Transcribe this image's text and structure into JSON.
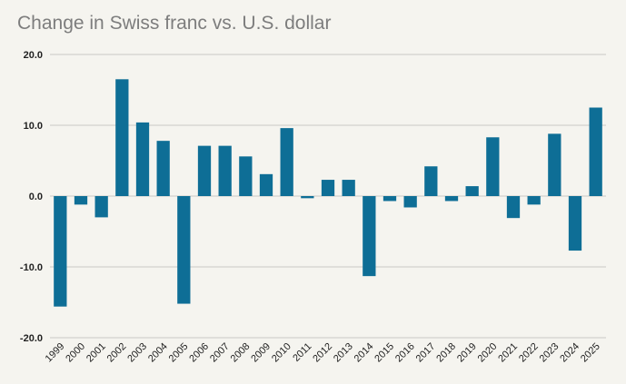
{
  "chart_data": {
    "type": "bar",
    "title": "Change in Swiss franc vs. U.S. dollar",
    "xlabel": "",
    "ylabel": "",
    "categories": [
      "1999",
      "2000",
      "2001",
      "2002",
      "2003",
      "2004",
      "2005",
      "2006",
      "2007",
      "2008",
      "2009",
      "2010",
      "2011",
      "2012",
      "2013",
      "2014",
      "2015",
      "2016",
      "2017",
      "2018",
      "2019",
      "2020",
      "2021",
      "2022",
      "2023",
      "2024",
      "2025"
    ],
    "values": [
      -15.6,
      -1.2,
      -3.0,
      16.5,
      10.4,
      7.8,
      -15.2,
      7.1,
      7.1,
      5.6,
      3.1,
      9.6,
      -0.3,
      2.3,
      2.3,
      -11.3,
      -0.7,
      -1.6,
      4.2,
      -0.7,
      1.4,
      8.3,
      -3.1,
      -1.2,
      8.8,
      -7.7,
      12.5
    ],
    "ylim": [
      -20,
      20
    ],
    "yticks": [
      -20,
      -10,
      0,
      10,
      20
    ],
    "ytick_labels": [
      "-20.0",
      "-10.0",
      "0.0",
      "10.0",
      "20.0"
    ],
    "grid": true,
    "bar_color": "#0e6e96",
    "grid_color": "#c9c9c4"
  }
}
